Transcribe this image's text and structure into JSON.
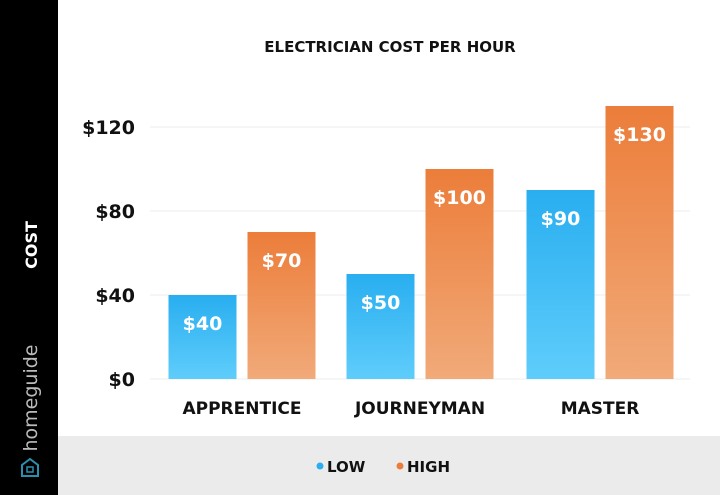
{
  "brand": {
    "name": "homeguide",
    "icon": "house-icon"
  },
  "chart_data": {
    "type": "bar",
    "title": "ELECTRICIAN COST PER HOUR",
    "ylabel": "COST",
    "xlabel": "",
    "categories": [
      "APPRENTICE",
      "JOURNEYMAN",
      "MASTER"
    ],
    "series": [
      {
        "name": "LOW",
        "values": [
          40,
          50,
          90
        ],
        "labels": [
          "$40",
          "$50",
          "$90"
        ],
        "color": "#29aef0",
        "color_light": "#5fcdfb"
      },
      {
        "name": "HIGH",
        "values": [
          70,
          100,
          130
        ],
        "labels": [
          "$70",
          "$100",
          "$130"
        ],
        "color": "#ec7d3a",
        "color_light": "#f1aa79"
      }
    ],
    "yticks": [
      0,
      40,
      80,
      120
    ],
    "ytick_labels": [
      "$0",
      "$40",
      "$80",
      "$120"
    ],
    "ylim": [
      0,
      130
    ],
    "grid": true,
    "legend_position": "bottom"
  }
}
